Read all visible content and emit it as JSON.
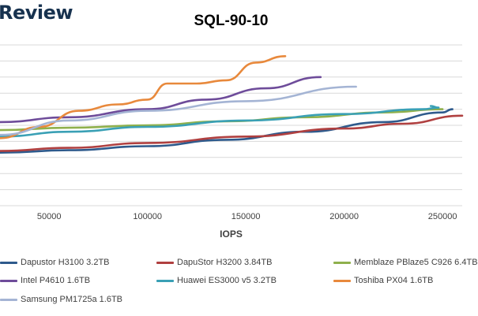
{
  "logo": "Review",
  "chart_data": {
    "type": "line",
    "title": "SQL-90-10",
    "xlabel": "IOPS",
    "ylabel": "",
    "xlim": [
      25000,
      260000
    ],
    "xticks": [
      50000,
      100000,
      150000,
      200000,
      250000
    ],
    "ylim": [
      0,
      10
    ],
    "grid": true,
    "legend_position": "bottom",
    "series": [
      {
        "name": "Dapustor H3100 3.2TB",
        "color": "#2e5a8c",
        "x": [
          25000,
          60000,
          100000,
          140000,
          180000,
          220000,
          250000,
          255000
        ],
        "y": [
          3.3,
          3.45,
          3.7,
          4.1,
          4.6,
          5.2,
          5.8,
          6.0
        ]
      },
      {
        "name": "DapuStor H3200 3.84TB",
        "color": "#b04040",
        "x": [
          25000,
          60000,
          100000,
          150000,
          200000,
          230000,
          260000
        ],
        "y": [
          3.4,
          3.6,
          3.9,
          4.3,
          4.8,
          5.1,
          5.6
        ]
      },
      {
        "name": "Memblaze PBlaze5 C926 6.4TB",
        "color": "#8fb04c",
        "x": [
          25000,
          60000,
          100000,
          140000,
          180000,
          220000,
          250000
        ],
        "y": [
          4.7,
          4.85,
          5.0,
          5.25,
          5.5,
          5.8,
          6.0
        ]
      },
      {
        "name": "Intel P4610 1.6TB",
        "color": "#6e4c9a",
        "x": [
          25000,
          60000,
          100000,
          130000,
          160000,
          188000
        ],
        "y": [
          5.2,
          5.5,
          6.0,
          6.6,
          7.3,
          8.0
        ]
      },
      {
        "name": "Huawei ES3000 v5 3.2TB",
        "color": "#3aa0b5",
        "x": [
          25000,
          60000,
          100000,
          150000,
          200000,
          240000,
          248000,
          244000
        ],
        "y": [
          4.3,
          4.6,
          4.9,
          5.3,
          5.7,
          6.0,
          6.1,
          6.2
        ]
      },
      {
        "name": "Toshiba PX04 1.6TB",
        "color": "#e8893c",
        "x": [
          25000,
          45000,
          65000,
          85000,
          100000,
          110000,
          125000,
          140000,
          155000,
          170000
        ],
        "y": [
          4.2,
          4.9,
          5.9,
          6.3,
          6.6,
          7.6,
          7.6,
          7.8,
          8.9,
          9.3
        ]
      },
      {
        "name": "Samsung PM1725a 1.6TB",
        "color": "#a4b4d4",
        "x": [
          25000,
          60000,
          100000,
          150000,
          206000
        ],
        "y": [
          4.4,
          5.3,
          5.9,
          6.5,
          7.4
        ]
      }
    ]
  }
}
